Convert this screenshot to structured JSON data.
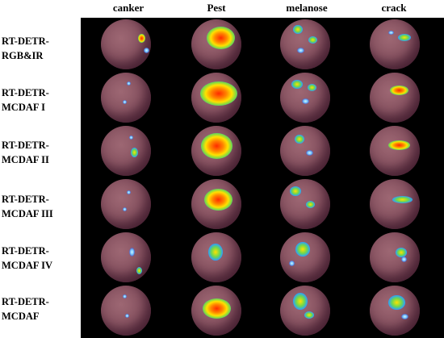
{
  "columns": [
    "canker",
    "Pest",
    "melanose",
    "crack"
  ],
  "rows": [
    {
      "label": [
        "RT-DETR-",
        "RGB&IR"
      ]
    },
    {
      "label": [
        "RT-DETR-",
        "MCDAF I"
      ]
    },
    {
      "label": [
        "RT-DETR-",
        "MCDAF II"
      ]
    },
    {
      "label": [
        "RT-DETR-",
        "MCDAF III"
      ]
    },
    {
      "label": [
        "RT-DETR-",
        "MCDAF IV"
      ]
    },
    {
      "label": [
        "RT-DETR-",
        "MCDAF"
      ]
    }
  ]
}
